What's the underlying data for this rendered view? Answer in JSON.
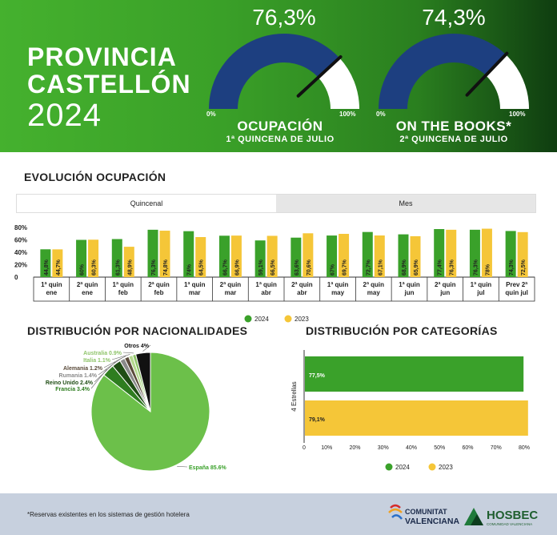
{
  "header": {
    "title_line1": "PROVINCIA",
    "title_line2": "CASTELLÓN",
    "title_line3": "2024",
    "gauges": [
      {
        "value_text": "76,3%",
        "value": 76.3,
        "label": "OCUPACIÓN",
        "sublabel": "1ª QUINCENA DE JULIO",
        "min_label": "0%",
        "max_label": "100%"
      },
      {
        "value_text": "74,3%",
        "value": 74.3,
        "label": "ON THE BOOKS*",
        "sublabel": "2ª QUINCENA DE JULIO",
        "min_label": "0%",
        "max_label": "100%"
      }
    ]
  },
  "sections": {
    "evolucion": "EVOLUCIÓN OCUPACIÓN",
    "nacionalidades": "DISTRIBUCIÓN POR NACIONALIDADES",
    "categorias": "DISTRIBUCIÓN POR CATEGORÍAS"
  },
  "tabs": {
    "quincenal": "Quincenal",
    "mes": "Mes"
  },
  "colors": {
    "green": "#3aa12a",
    "yellow": "#f5c638",
    "gauge_blue": "#1d3f80",
    "pie_green": "#6cc04a"
  },
  "chart_data": [
    {
      "type": "bar",
      "categories": [
        "1ª quin ene",
        "2ª quin ene",
        "1ª quin feb",
        "2ª quin feb",
        "1ª quin mar",
        "2ª quin mar",
        "1ª quin abr",
        "2ª quin abr",
        "1ª quin may",
        "2ª quin may",
        "1ª quin jun",
        "2ª quin jun",
        "1ª quin jul",
        "Prev 2ª quin jul"
      ],
      "series": [
        {
          "name": "2024",
          "color": "#3aa12a",
          "values": [
            44.8,
            60,
            61.3,
            76.3,
            74,
            66.7,
            59.1,
            63.6,
            67,
            72.7,
            68.9,
            77.4,
            76.3,
            74.3
          ],
          "labels": [
            "44,8%",
            "60%",
            "61,3%",
            "76,3%",
            "74%",
            "66,7%",
            "59,1%",
            "63,6%",
            "67%",
            "72,7%",
            "68,9%",
            "77,4%",
            "76,3%",
            "74,3%"
          ]
        },
        {
          "name": "2023",
          "color": "#f5c638",
          "values": [
            44.7,
            60.3,
            48.9,
            74.8,
            64.5,
            66.9,
            66.5,
            70.6,
            69.7,
            67.1,
            65.9,
            76.3,
            78,
            72.5
          ],
          "labels": [
            "44,7%",
            "60,3%",
            "48,9%",
            "74,8%",
            "64,5%",
            "66,9%",
            "66,5%",
            "70,6%",
            "69,7%",
            "67,1%",
            "65,9%",
            "76,3%",
            "78%",
            "72,5%"
          ]
        }
      ],
      "yticks": [
        "0",
        "20%",
        "40%",
        "60%",
        "80%"
      ],
      "ylim": [
        0,
        80
      ]
    },
    {
      "type": "pie",
      "slices": [
        {
          "label": "España 85.6%",
          "value": 85.6,
          "color": "#6cc04a"
        },
        {
          "label": "Francia 3.4%",
          "value": 3.4,
          "color": "#2e7d1f"
        },
        {
          "label": "Reino Unido 2.4%",
          "value": 2.4,
          "color": "#1f4d14"
        },
        {
          "label": "Rumania 1.4%",
          "value": 1.4,
          "color": "#8a8a8a"
        },
        {
          "label": "Alemania 1.2%",
          "value": 1.2,
          "color": "#5a4a3a"
        },
        {
          "label": "Italia 1.1%",
          "value": 1.1,
          "color": "#b5d98f"
        },
        {
          "label": "Australia 0.9%",
          "value": 0.9,
          "color": "#8fc46a"
        },
        {
          "label": "Otros 4%",
          "value": 4,
          "color": "#111111"
        }
      ]
    },
    {
      "type": "bar",
      "orientation": "horizontal",
      "categories": [
        "4 Estrellas"
      ],
      "series": [
        {
          "name": "2024",
          "color": "#3aa12a",
          "values": [
            77.5
          ],
          "labels": [
            "77,5%"
          ]
        },
        {
          "name": "2023",
          "color": "#f5c638",
          "values": [
            79.1
          ],
          "labels": [
            "79,1%"
          ]
        }
      ],
      "xticks": [
        "0",
        "10%",
        "20%",
        "30%",
        "40%",
        "50%",
        "60%",
        "70%",
        "80%"
      ],
      "xlim": [
        0,
        80
      ]
    }
  ],
  "footer": {
    "note": "*Reservas existentes en los sistemas de gestión hotelera",
    "logo1_line1": "COMUNITAT",
    "logo1_line2": "VALENCIANA",
    "logo2_text": "HOSBEC",
    "logo2_sub": "COMUNIDAD VALENCIANA"
  }
}
